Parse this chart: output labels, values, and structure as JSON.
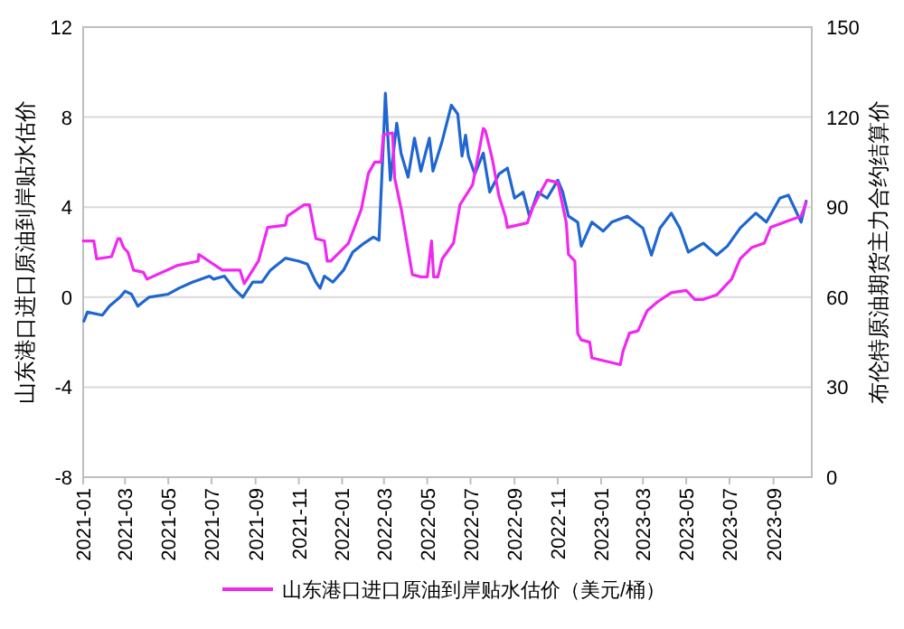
{
  "chart_data": {
    "type": "line",
    "ylabel": "山东港口进口原油到岸贴水估价",
    "y2label": "布伦特原油期货主力合约结算价",
    "xlim": [
      "2021-01-01",
      "2023-10-25"
    ],
    "xticks": [
      "2021-01",
      "2021-03",
      "2021-05",
      "2021-07",
      "2021-09",
      "2021-11",
      "2022-01",
      "2022-03",
      "2022-05",
      "2022-07",
      "2022-09",
      "2022-11",
      "2023-01",
      "2023-03",
      "2023-05",
      "2023-07",
      "2023-09"
    ],
    "ylim": [
      -8,
      12
    ],
    "yticks": [
      -8,
      -4,
      0,
      4,
      8,
      12
    ],
    "y2lim": [
      0,
      150
    ],
    "y2ticks": [
      0,
      30,
      60,
      90,
      120,
      150
    ],
    "grid": "y",
    "legend": "bottom",
    "series": [
      {
        "axis": "y2",
        "color": "#1f66d0",
        "x": [
          "2021-01-02",
          "2021-01-07",
          "2021-01-28",
          "2021-02-07",
          "2021-02-22",
          "2021-03-01",
          "2021-03-10",
          "2021-03-19",
          "2021-04-04",
          "2021-05-01",
          "2021-05-16",
          "2021-06-04",
          "2021-06-28",
          "2021-07-04",
          "2021-07-19",
          "2021-08-01",
          "2021-08-14",
          "2021-08-28",
          "2021-09-10",
          "2021-09-22",
          "2021-10-13",
          "2021-11-01",
          "2021-11-13",
          "2021-11-25",
          "2021-12-01",
          "2021-12-07",
          "2021-12-19",
          "2022-01-03",
          "2022-01-16",
          "2022-02-01",
          "2022-02-14",
          "2022-02-22",
          "2022-02-28",
          "2022-03-03",
          "2022-03-10",
          "2022-03-19",
          "2022-03-25",
          "2022-04-04",
          "2022-04-13",
          "2022-04-22",
          "2022-05-04",
          "2022-05-09",
          "2022-05-22",
          "2022-06-04",
          "2022-06-13",
          "2022-06-19",
          "2022-06-24",
          "2022-06-28",
          "2022-07-07",
          "2022-07-19",
          "2022-07-28",
          "2022-08-10",
          "2022-08-22",
          "2022-09-01",
          "2022-09-13",
          "2022-09-22",
          "2022-10-04",
          "2022-10-17",
          "2022-11-01",
          "2022-11-08",
          "2022-11-16",
          "2022-11-29",
          "2022-12-04",
          "2022-12-19",
          "2023-01-04",
          "2023-01-16",
          "2023-02-07",
          "2023-03-01",
          "2023-03-13",
          "2023-03-25",
          "2023-04-10",
          "2023-04-22",
          "2023-05-04",
          "2023-05-25",
          "2023-06-13",
          "2023-06-28",
          "2023-07-16",
          "2023-08-07",
          "2023-08-22",
          "2023-09-10",
          "2023-09-22",
          "2023-10-10",
          "2023-10-17"
        ],
        "values": [
          52,
          55,
          54,
          57,
          60,
          62,
          61,
          57,
          60,
          61,
          63,
          65,
          67,
          66,
          67,
          63,
          60,
          65,
          65,
          69,
          73,
          72,
          71,
          65,
          63,
          67,
          65,
          69,
          75,
          78,
          80,
          79,
          111,
          128,
          99,
          118,
          108,
          100,
          113,
          102,
          113,
          102,
          112,
          124,
          121,
          107,
          114,
          107,
          101,
          108,
          95,
          101,
          103,
          93,
          95,
          87,
          95,
          93,
          99,
          95,
          87,
          85,
          77,
          85,
          82,
          85,
          87,
          83,
          74,
          83,
          88,
          83,
          75,
          78,
          74,
          77,
          83,
          88,
          85,
          93,
          94,
          85,
          92
        ]
      },
      {
        "name": "山东港口进口原油到岸贴水估价（美元/桶）",
        "color": "#f028f0",
        "x": [
          "2021-01-01",
          "2021-01-16",
          "2021-01-20",
          "2021-02-10",
          "2021-02-19",
          "2021-02-22",
          "2021-02-27",
          "2021-03-05",
          "2021-03-13",
          "2021-03-27",
          "2021-04-01",
          "2021-05-13",
          "2021-06-12",
          "2021-06-13",
          "2021-07-16",
          "2021-08-10",
          "2021-08-16",
          "2021-09-05",
          "2021-09-18",
          "2021-10-13",
          "2021-10-16",
          "2021-11-08",
          "2021-11-16",
          "2021-11-25",
          "2021-12-07",
          "2021-12-11",
          "2021-12-16",
          "2022-01-10",
          "2022-01-28",
          "2022-02-07",
          "2022-02-16",
          "2022-02-25",
          "2022-02-28",
          "2022-03-13",
          "2022-03-16",
          "2022-03-26",
          "2022-04-10",
          "2022-04-22",
          "2022-05-01",
          "2022-05-07",
          "2022-05-10",
          "2022-05-16",
          "2022-05-22",
          "2022-06-07",
          "2022-06-16",
          "2022-07-04",
          "2022-07-19",
          "2022-07-22",
          "2022-08-01",
          "2022-08-10",
          "2022-08-19",
          "2022-08-22",
          "2022-09-19",
          "2022-09-27",
          "2022-10-10",
          "2022-10-17",
          "2022-11-01",
          "2022-11-13",
          "2022-11-16",
          "2022-11-25",
          "2022-11-29",
          "2022-12-04",
          "2022-12-16",
          "2022-12-19",
          "2023-01-28",
          "2023-02-01",
          "2023-02-10",
          "2023-02-22",
          "2023-03-07",
          "2023-03-22",
          "2023-04-10",
          "2023-05-01",
          "2023-05-13",
          "2023-05-25",
          "2023-06-13",
          "2023-06-19",
          "2023-07-04",
          "2023-07-16",
          "2023-08-01",
          "2023-08-19",
          "2023-08-28",
          "2023-09-22",
          "2023-10-10",
          "2023-10-17"
        ],
        "values": [
          2.5,
          2.5,
          1.7,
          1.8,
          2.6,
          2.6,
          2.2,
          2.0,
          1.2,
          1.1,
          0.8,
          1.4,
          1.6,
          1.9,
          1.2,
          1.2,
          0.6,
          1.6,
          3.1,
          3.2,
          3.6,
          4.1,
          4.1,
          2.6,
          2.5,
          1.6,
          1.6,
          2.4,
          3.9,
          5.5,
          6.0,
          6.0,
          7.2,
          7.3,
          5.3,
          3.8,
          1.0,
          0.9,
          0.9,
          2.5,
          0.9,
          0.9,
          1.7,
          2.4,
          4.1,
          5.0,
          7.5,
          7.4,
          6.1,
          4.5,
          3.6,
          3.1,
          3.3,
          4.0,
          4.8,
          5.2,
          5.1,
          3.3,
          1.9,
          1.6,
          -1.6,
          -1.9,
          -2.0,
          -2.7,
          -3.0,
          -2.4,
          -1.6,
          -1.5,
          -0.6,
          -0.2,
          0.2,
          0.3,
          -0.1,
          -0.1,
          0.1,
          0.3,
          0.8,
          1.7,
          2.2,
          2.4,
          3.1,
          3.4,
          3.6,
          4.2
        ]
      }
    ]
  }
}
